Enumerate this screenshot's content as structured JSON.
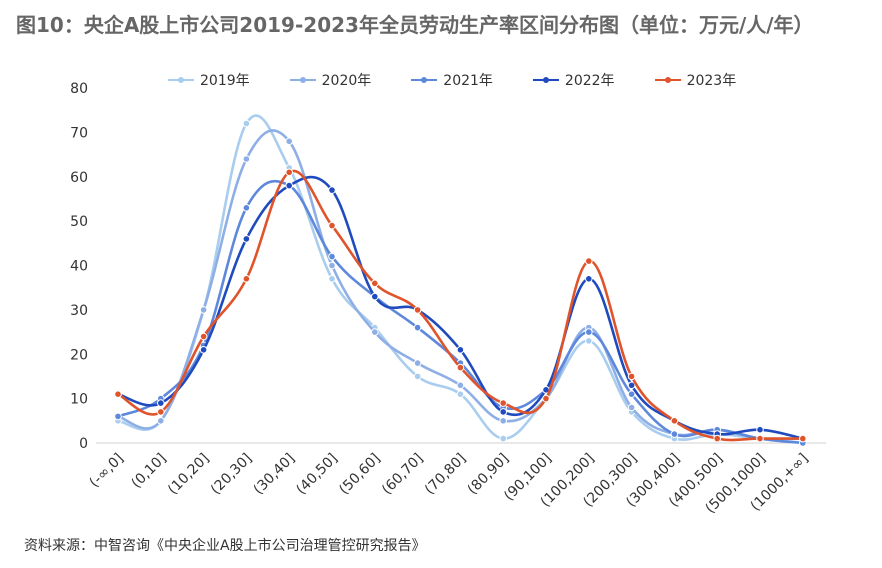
{
  "title": "图10：央企A股上市公司2019-2023年全员劳动生产率区间分布图（单位：万元/人/年）",
  "source": "资料来源：中智咨询《中央企业A股上市公司治理管控研究报告》",
  "chart_data": {
    "type": "line",
    "smooth": true,
    "categories": [
      "(-∞,0]",
      "(0,10]",
      "(10,20]",
      "(20,30]",
      "(30,40]",
      "(40,50]",
      "(50,60]",
      "(60,70]",
      "(70,80]",
      "(80,90]",
      "(90,100]",
      "(100,200]",
      "(200,300]",
      "(300,400]",
      "(400,500]",
      "(500,1000]",
      "(1000,+∞]"
    ],
    "yticks": [
      "0",
      "10",
      "20",
      "30",
      "40",
      "50",
      "60",
      "70",
      "80"
    ],
    "ylim": [
      0,
      80
    ],
    "legend_position": "top",
    "series": [
      {
        "name": "2019年",
        "color": "#a9cdee",
        "values": [
          5,
          5,
          30,
          72,
          62,
          37,
          26,
          15,
          11,
          1,
          10,
          23,
          7,
          1,
          2,
          1,
          1
        ]
      },
      {
        "name": "2020年",
        "color": "#8eaee6",
        "values": [
          6,
          5,
          30,
          64,
          68,
          40,
          25,
          18,
          13,
          5,
          10,
          26,
          8,
          2,
          3,
          1,
          1
        ]
      },
      {
        "name": "2021年",
        "color": "#5e88dc",
        "values": [
          6,
          10,
          22,
          53,
          58,
          42,
          33,
          26,
          18,
          8,
          12,
          25,
          11,
          2,
          3,
          1,
          0
        ]
      },
      {
        "name": "2022年",
        "color": "#1f4bbf",
        "values": [
          11,
          9,
          21,
          46,
          58,
          57,
          33,
          30,
          21,
          7,
          12,
          37,
          13,
          5,
          2,
          3,
          1
        ]
      },
      {
        "name": "2023年",
        "color": "#e0542b",
        "values": [
          11,
          7,
          24,
          37,
          61,
          49,
          36,
          30,
          17,
          9,
          10,
          41,
          15,
          5,
          1,
          1,
          1
        ]
      }
    ]
  }
}
